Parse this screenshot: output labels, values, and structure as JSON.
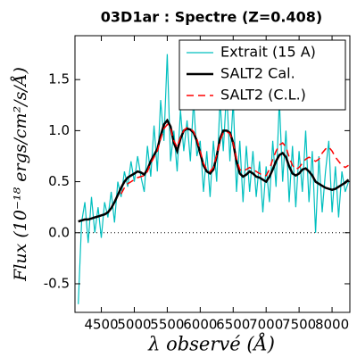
{
  "chart_data": {
    "type": "line",
    "title": "03D1ar : Spectre (Z=0.408)",
    "xlabel": "λ observé (Å)",
    "ylabel": "Flux (10⁻¹⁸ ergs/cm²/s/Å)",
    "x": [
      4150,
      4200,
      4250,
      4300,
      4350,
      4400,
      4450,
      4500,
      4550,
      4600,
      4650,
      4700,
      4750,
      4800,
      4850,
      4900,
      4950,
      5000,
      5050,
      5100,
      5150,
      5200,
      5250,
      5300,
      5350,
      5400,
      5450,
      5500,
      5550,
      5600,
      5650,
      5700,
      5750,
      5800,
      5850,
      5900,
      5950,
      6000,
      6050,
      6100,
      6150,
      6200,
      6250,
      6300,
      6350,
      6400,
      6450,
      6500,
      6550,
      6600,
      6650,
      6700,
      6750,
      6800,
      6850,
      6900,
      6950,
      7000,
      7050,
      7100,
      7150,
      7200,
      7250,
      7300,
      7350,
      7400,
      7450,
      7500,
      7550,
      7600,
      7650,
      7700,
      7750,
      7800,
      7850,
      7900,
      7950,
      8000,
      8050,
      8100,
      8150,
      8200,
      8250
    ],
    "series": [
      {
        "name": "Extrait (15 A)",
        "color": "#00bfbf",
        "linestyle": "solid",
        "linewidth": 1.2,
        "values": [
          -0.7,
          0.1,
          0.3,
          -0.1,
          0.35,
          0.0,
          0.25,
          -0.05,
          0.3,
          0.15,
          0.4,
          0.1,
          0.5,
          0.35,
          0.6,
          0.45,
          0.7,
          0.5,
          0.75,
          0.55,
          0.4,
          0.85,
          0.55,
          1.05,
          0.6,
          1.3,
          0.9,
          1.75,
          0.7,
          1.0,
          0.6,
          1.2,
          0.8,
          1.1,
          0.7,
          1.3,
          0.75,
          0.9,
          0.4,
          0.8,
          0.35,
          0.9,
          0.5,
          1.3,
          0.8,
          1.4,
          0.7,
          1.3,
          0.4,
          0.9,
          0.3,
          0.85,
          0.4,
          0.8,
          0.35,
          0.7,
          0.2,
          0.65,
          0.3,
          0.9,
          0.45,
          1.3,
          0.5,
          1.0,
          0.3,
          0.85,
          0.25,
          0.8,
          0.4,
          1.0,
          0.3,
          0.8,
          0.0,
          0.75,
          0.2,
          0.6,
          0.9,
          0.2,
          0.65,
          0.15,
          0.6,
          0.4,
          0.5
        ]
      },
      {
        "name": "SALT2 Cal.",
        "color": "#000000",
        "linestyle": "solid",
        "linewidth": 2.5,
        "values": [
          0.11,
          0.12,
          0.13,
          0.13,
          0.14,
          0.15,
          0.16,
          0.17,
          0.18,
          0.2,
          0.24,
          0.3,
          0.37,
          0.44,
          0.5,
          0.54,
          0.56,
          0.58,
          0.6,
          0.59,
          0.57,
          0.62,
          0.7,
          0.76,
          0.82,
          0.95,
          1.06,
          1.1,
          1.04,
          0.88,
          0.8,
          0.92,
          1.0,
          1.02,
          1.01,
          0.98,
          0.9,
          0.78,
          0.66,
          0.6,
          0.58,
          0.62,
          0.75,
          0.92,
          1.0,
          1.0,
          0.98,
          0.88,
          0.7,
          0.58,
          0.55,
          0.57,
          0.6,
          0.58,
          0.55,
          0.54,
          0.52,
          0.5,
          0.55,
          0.62,
          0.7,
          0.76,
          0.78,
          0.74,
          0.65,
          0.58,
          0.56,
          0.58,
          0.62,
          0.63,
          0.6,
          0.56,
          0.5,
          0.48,
          0.46,
          0.44,
          0.43,
          0.42,
          0.43,
          0.45,
          0.47,
          0.49,
          0.52
        ]
      },
      {
        "name": "SALT2 (C.L.)",
        "color": "#ff0000",
        "linestyle": "dashed",
        "linewidth": 1.5,
        "values": [
          null,
          null,
          null,
          null,
          null,
          null,
          null,
          null,
          null,
          null,
          null,
          null,
          null,
          0.38,
          0.44,
          0.48,
          0.5,
          0.52,
          0.54,
          0.55,
          0.56,
          0.6,
          0.68,
          0.74,
          0.8,
          0.92,
          1.02,
          1.06,
          1.02,
          0.9,
          0.84,
          0.94,
          1.0,
          1.03,
          1.02,
          0.99,
          0.92,
          0.8,
          0.68,
          0.62,
          0.6,
          0.64,
          0.76,
          0.9,
          0.98,
          0.99,
          0.97,
          0.88,
          0.72,
          0.62,
          0.6,
          0.62,
          0.64,
          0.62,
          0.6,
          0.58,
          0.56,
          0.56,
          0.62,
          0.72,
          0.8,
          0.86,
          0.88,
          0.84,
          0.74,
          0.66,
          0.62,
          0.64,
          0.68,
          0.72,
          0.74,
          0.72,
          0.7,
          0.72,
          0.78,
          0.82,
          0.84,
          0.8,
          0.74,
          0.7,
          0.66,
          0.64,
          0.66
        ]
      }
    ],
    "hline": 0,
    "xlim": [
      4100,
      8270
    ],
    "ylim": [
      -0.78,
      1.93
    ],
    "xticks": [
      4500,
      5000,
      5500,
      6000,
      6500,
      7000,
      7500,
      8000
    ],
    "yticks": [
      -0.5,
      {
        "value": 0,
        "label": "0.0"
      },
      0.5,
      {
        "value": 1,
        "label": "1.0"
      },
      1.5
    ],
    "legend": "upper right"
  }
}
